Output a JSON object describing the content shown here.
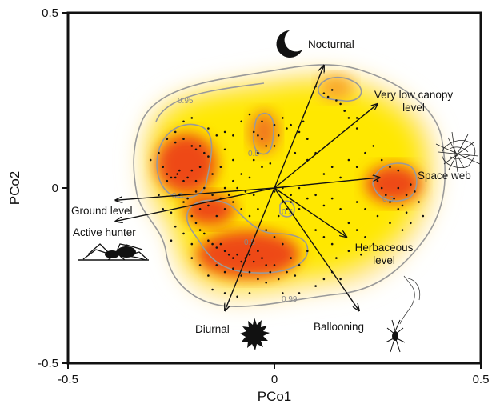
{
  "chart_data": {
    "type": "scatter",
    "xlabel": "PCo1",
    "ylabel": "PCo2",
    "xlim": [
      -0.5,
      0.5
    ],
    "ylim": [
      -0.5,
      0.5
    ],
    "xticks": [
      "-0.5",
      "0",
      "0.5"
    ],
    "yticks": [
      "0.5",
      "0",
      "-0.5"
    ],
    "grid": false,
    "contour_levels": [
      "0.95",
      "0.5",
      "0.5",
      "0.5",
      "0.5",
      "0.5",
      "0.99"
    ],
    "vectors": [
      {
        "name": "Nocturnal",
        "x": 0.12,
        "y": 0.35
      },
      {
        "name": "Very low canopy level",
        "x": 0.25,
        "y": 0.24
      },
      {
        "name": "Space web",
        "x": 0.255,
        "y": 0.03
      },
      {
        "name": "Ground level",
        "x": -0.385,
        "y": -0.035
      },
      {
        "name": "Active hunter",
        "x": -0.385,
        "y": -0.095
      },
      {
        "name": "Herbaceous level",
        "x": 0.175,
        "y": -0.14
      },
      {
        "name": "Ballooning",
        "x": 0.205,
        "y": -0.35
      },
      {
        "name": "Diurnal",
        "x": -0.12,
        "y": -0.35
      }
    ],
    "points": [
      [
        -0.27,
        0.06
      ],
      [
        -0.26,
        0.04
      ],
      [
        -0.25,
        0.03
      ],
      [
        -0.24,
        0.03
      ],
      [
        -0.235,
        0.04
      ],
      [
        -0.22,
        0.02
      ],
      [
        -0.23,
        0.05
      ],
      [
        -0.26,
        0.02
      ],
      [
        -0.21,
        0.03
      ],
      [
        -0.2,
        0.05
      ],
      [
        -0.22,
        0.14
      ],
      [
        -0.2,
        0.12
      ],
      [
        -0.19,
        0.11
      ],
      [
        -0.18,
        0.12
      ],
      [
        -0.17,
        0.1
      ],
      [
        -0.16,
        0.09
      ],
      [
        -0.18,
        0.06
      ],
      [
        -0.19,
        0.02
      ],
      [
        -0.15,
        0.04
      ],
      [
        -0.13,
        0.06
      ],
      [
        -0.3,
        0.08
      ],
      [
        -0.28,
        0.1
      ],
      [
        -0.26,
        0.14
      ],
      [
        -0.24,
        0.13
      ],
      [
        -0.12,
        0.11
      ],
      [
        -0.1,
        0.08
      ],
      [
        -0.08,
        0.04
      ],
      [
        -0.06,
        0.03
      ],
      [
        -0.1,
        0.02
      ],
      [
        -0.12,
        0.0
      ],
      [
        -0.05,
        0.16
      ],
      [
        -0.04,
        0.15
      ],
      [
        -0.03,
        0.14
      ],
      [
        -0.02,
        0.12
      ],
      [
        -0.04,
        0.1
      ],
      [
        -0.05,
        0.08
      ],
      [
        -0.03,
        0.06
      ],
      [
        -0.01,
        0.07
      ],
      [
        0.0,
        0.12
      ],
      [
        0.01,
        0.15
      ],
      [
        -0.08,
        0.19
      ],
      [
        -0.06,
        0.21
      ],
      [
        -0.03,
        0.19
      ],
      [
        0.02,
        0.2
      ],
      [
        0.04,
        0.18
      ],
      [
        0.06,
        0.16
      ],
      [
        0.08,
        0.14
      ],
      [
        0.05,
        0.1
      ],
      [
        0.08,
        0.08
      ],
      [
        0.1,
        0.1
      ],
      [
        0.1,
        0.29
      ],
      [
        0.12,
        0.27
      ],
      [
        0.13,
        0.26
      ],
      [
        0.14,
        0.28
      ],
      [
        0.15,
        0.25
      ],
      [
        0.16,
        0.24
      ],
      [
        0.17,
        0.22
      ],
      [
        0.18,
        0.2
      ],
      [
        0.2,
        0.2
      ],
      [
        0.2,
        0.17
      ],
      [
        0.12,
        0.04
      ],
      [
        0.14,
        0.06
      ],
      [
        0.16,
        0.03
      ],
      [
        0.18,
        0.08
      ],
      [
        0.2,
        0.06
      ],
      [
        0.22,
        0.1
      ],
      [
        0.24,
        0.12
      ],
      [
        0.26,
        0.08
      ],
      [
        0.28,
        0.06
      ],
      [
        0.3,
        0.05
      ],
      [
        0.25,
        0.02
      ],
      [
        0.26,
        0.0
      ],
      [
        0.27,
        -0.02
      ],
      [
        0.28,
        -0.04
      ],
      [
        0.29,
        -0.03
      ],
      [
        0.3,
        0.0
      ],
      [
        0.31,
        -0.05
      ],
      [
        0.32,
        -0.02
      ],
      [
        0.33,
        0.01
      ],
      [
        0.34,
        -0.01
      ],
      [
        0.3,
        -0.06
      ],
      [
        0.32,
        -0.07
      ],
      [
        0.35,
        -0.04
      ],
      [
        0.36,
        -0.08
      ],
      [
        0.33,
        -0.1
      ],
      [
        0.31,
        -0.12
      ],
      [
        0.28,
        -0.1
      ],
      [
        0.25,
        -0.08
      ],
      [
        0.22,
        -0.06
      ],
      [
        0.2,
        -0.04
      ],
      [
        0.18,
        -0.1
      ],
      [
        0.2,
        -0.12
      ],
      [
        0.22,
        -0.14
      ],
      [
        0.24,
        -0.16
      ],
      [
        0.21,
        -0.19
      ],
      [
        0.18,
        -0.18
      ],
      [
        0.15,
        -0.2
      ],
      [
        0.14,
        -0.16
      ],
      [
        0.12,
        -0.14
      ],
      [
        0.1,
        -0.12
      ],
      [
        0.08,
        -0.18
      ],
      [
        0.06,
        -0.22
      ],
      [
        0.04,
        -0.2
      ],
      [
        0.02,
        -0.16
      ],
      [
        0.0,
        -0.14
      ],
      [
        -0.02,
        -0.12
      ],
      [
        0.01,
        -0.08
      ],
      [
        0.03,
        -0.06
      ],
      [
        0.04,
        -0.04
      ],
      [
        0.06,
        -0.06
      ],
      [
        -0.04,
        -0.06
      ],
      [
        -0.06,
        -0.08
      ],
      [
        -0.08,
        -0.06
      ],
      [
        -0.1,
        -0.04
      ],
      [
        -0.12,
        -0.06
      ],
      [
        -0.14,
        -0.08
      ],
      [
        -0.16,
        -0.05
      ],
      [
        -0.18,
        -0.06
      ],
      [
        -0.2,
        -0.08
      ],
      [
        -0.22,
        -0.04
      ],
      [
        -0.19,
        -0.1
      ],
      [
        -0.18,
        -0.12
      ],
      [
        -0.17,
        -0.13
      ],
      [
        -0.16,
        -0.15
      ],
      [
        -0.15,
        -0.16
      ],
      [
        -0.14,
        -0.17
      ],
      [
        -0.13,
        -0.16
      ],
      [
        -0.12,
        -0.18
      ],
      [
        -0.11,
        -0.19
      ],
      [
        -0.1,
        -0.2
      ],
      [
        -0.09,
        -0.19
      ],
      [
        -0.08,
        -0.21
      ],
      [
        -0.07,
        -0.2
      ],
      [
        -0.06,
        -0.19
      ],
      [
        -0.05,
        -0.21
      ],
      [
        -0.04,
        -0.18
      ],
      [
        -0.03,
        -0.2
      ],
      [
        -0.02,
        -0.22
      ],
      [
        -0.01,
        -0.24
      ],
      [
        0.0,
        -0.22
      ],
      [
        -0.14,
        -0.22
      ],
      [
        -0.12,
        -0.24
      ],
      [
        -0.1,
        -0.23
      ],
      [
        -0.08,
        -0.25
      ],
      [
        -0.06,
        -0.24
      ],
      [
        -0.04,
        -0.26
      ],
      [
        -0.02,
        -0.27
      ],
      [
        0.01,
        -0.26
      ],
      [
        0.03,
        -0.24
      ],
      [
        0.05,
        -0.25
      ],
      [
        -0.06,
        -0.3
      ],
      [
        -0.09,
        -0.31
      ],
      [
        -0.12,
        -0.3
      ],
      [
        -0.15,
        -0.29
      ],
      [
        0.02,
        -0.3
      ],
      [
        0.06,
        -0.3
      ],
      [
        0.1,
        -0.28
      ],
      [
        0.12,
        -0.26
      ],
      [
        0.14,
        -0.24
      ],
      [
        0.16,
        -0.26
      ],
      [
        -0.23,
        -0.02
      ],
      [
        -0.21,
        -0.03
      ],
      [
        -0.19,
        -0.01
      ],
      [
        -0.17,
        0.0
      ],
      [
        -0.15,
        -0.02
      ],
      [
        -0.13,
        -0.03
      ],
      [
        -0.11,
        -0.02
      ],
      [
        -0.09,
        0.0
      ],
      [
        -0.07,
        -0.01
      ],
      [
        -0.05,
        -0.02
      ],
      [
        0.0,
        -0.01
      ],
      [
        0.02,
        0.0
      ],
      [
        0.04,
        -0.02
      ],
      [
        0.06,
        0.0
      ],
      [
        0.08,
        -0.03
      ],
      [
        0.1,
        -0.02
      ],
      [
        0.12,
        -0.05
      ],
      [
        0.14,
        -0.03
      ],
      [
        0.16,
        -0.06
      ],
      [
        0.02,
        -0.04
      ],
      [
        -0.28,
        -0.02
      ],
      [
        -0.27,
        -0.06
      ],
      [
        -0.25,
        -0.07
      ],
      [
        -0.24,
        -0.11
      ],
      [
        -0.22,
        -0.13
      ],
      [
        -0.25,
        -0.15
      ],
      [
        -0.2,
        -0.16
      ],
      [
        -0.2,
        -0.2
      ],
      [
        -0.18,
        -0.22
      ],
      [
        -0.16,
        -0.25
      ],
      [
        -0.24,
        0.16
      ],
      [
        -0.22,
        0.19
      ],
      [
        -0.2,
        0.2
      ],
      [
        -0.16,
        0.17
      ],
      [
        -0.14,
        0.15
      ],
      [
        -0.12,
        0.16
      ],
      [
        -0.1,
        0.15
      ],
      [
        0.0,
        0.18
      ],
      [
        0.03,
        0.17
      ],
      [
        0.07,
        0.19
      ]
    ]
  }
}
